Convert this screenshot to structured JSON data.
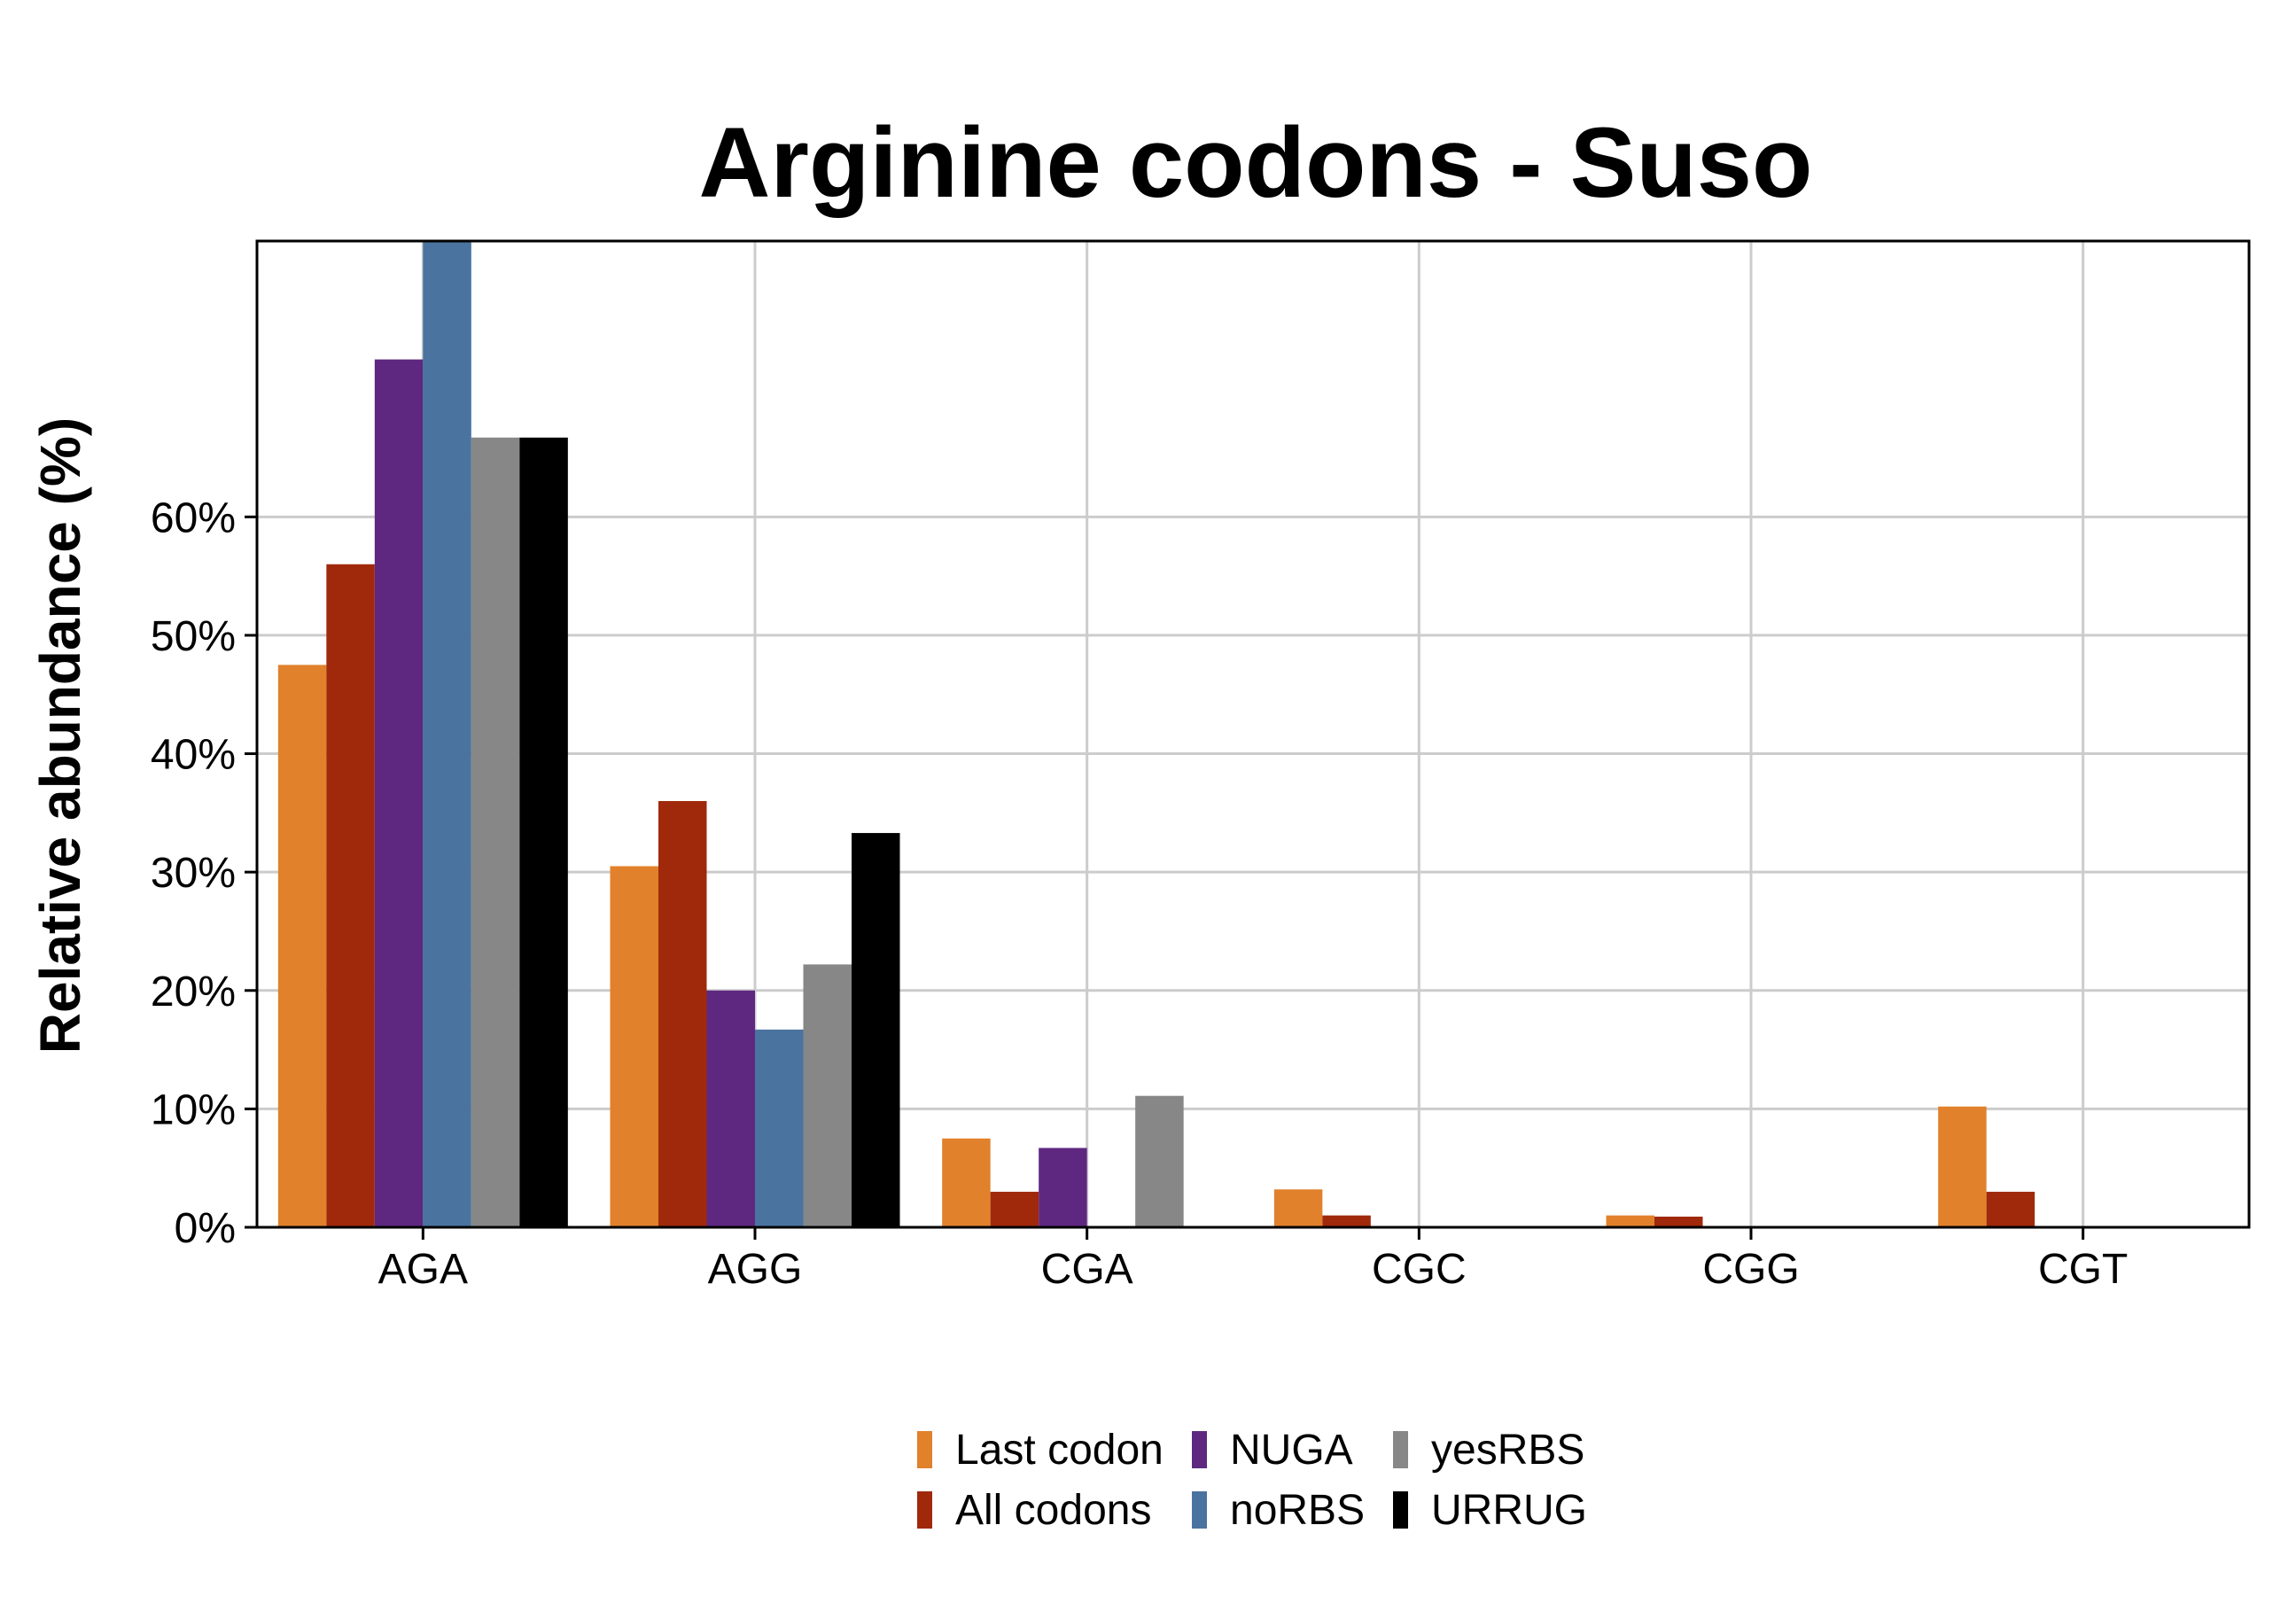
{
  "chart_data": {
    "type": "bar",
    "title": "Arginine codons - Suso",
    "xlabel": "",
    "ylabel": "Relative abundance (%)",
    "categories": [
      "AGA",
      "AGG",
      "CGA",
      "CGC",
      "CGG",
      "CGT"
    ],
    "ylim": [
      0,
      83.3
    ],
    "yticks": [
      0,
      10,
      20,
      30,
      40,
      50,
      60
    ],
    "ytick_labels": [
      "0%",
      "10%",
      "20%",
      "30%",
      "40%",
      "50%",
      "60%"
    ],
    "grid": true,
    "legend_position": "bottom",
    "series": [
      {
        "name": "Last codon",
        "color": "#E1812C",
        "values": [
          47.5,
          30.5,
          7.5,
          3.2,
          1.0,
          10.2
        ]
      },
      {
        "name": "All codons",
        "color": "#A0290C",
        "values": [
          56.0,
          36.0,
          3.0,
          1.0,
          0.9,
          3.0
        ]
      },
      {
        "name": "NUGA",
        "color": "#5E2881",
        "values": [
          73.3,
          20.0,
          6.7,
          0,
          0,
          0
        ]
      },
      {
        "name": "noRBS",
        "color": "#4A73A0",
        "values": [
          83.3,
          16.7,
          0,
          0,
          0,
          0
        ]
      },
      {
        "name": "yesRBS",
        "color": "#878787",
        "values": [
          66.7,
          22.2,
          11.1,
          0,
          0,
          0
        ]
      },
      {
        "name": "URRUG",
        "color": "#000000",
        "values": [
          66.7,
          33.3,
          0,
          0,
          0,
          0
        ]
      }
    ]
  }
}
